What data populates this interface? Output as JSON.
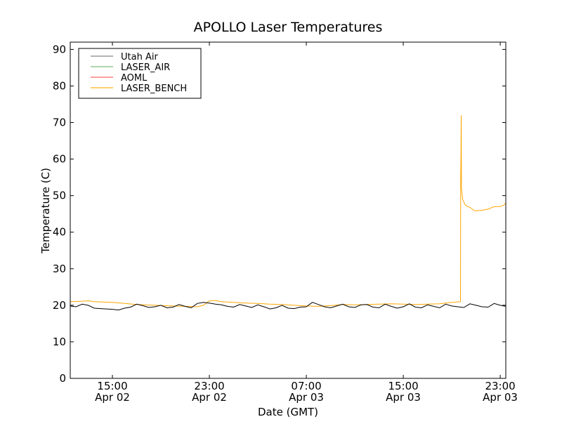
{
  "chart_data": {
    "type": "line",
    "title": "APOLLO Laser Temperatures",
    "xlabel": "Date (GMT)",
    "ylabel": "Temperature (C)",
    "x_units": "hours since 00:00 Apr 02 (GMT)",
    "xlim": [
      11.52,
      47.46
    ],
    "ylim": [
      0,
      92
    ],
    "yticks": [
      0,
      10,
      20,
      30,
      40,
      50,
      60,
      70,
      80,
      90
    ],
    "xticks": [
      {
        "value": 15,
        "time": "15:00",
        "date": "Apr 02"
      },
      {
        "value": 23,
        "time": "23:00",
        "date": "Apr 02"
      },
      {
        "value": 31,
        "time": "07:00",
        "date": "Apr 03"
      },
      {
        "value": 39,
        "time": "15:00",
        "date": "Apr 03"
      },
      {
        "value": 47,
        "time": "23:00",
        "date": "Apr 03"
      }
    ],
    "grid": false,
    "legend_position": "top-left",
    "series": [
      {
        "name": "Utah Air",
        "legend_color": "#999999",
        "line_color": "#000000",
        "points": [
          [
            11.5,
            19.8
          ],
          [
            12,
            19.6
          ],
          [
            12.5,
            20.3
          ],
          [
            13,
            20.0
          ],
          [
            13.5,
            19.2
          ],
          [
            14,
            19.1
          ],
          [
            14.5,
            19.0
          ],
          [
            15,
            18.9
          ],
          [
            15.5,
            18.7
          ],
          [
            16,
            19.2
          ],
          [
            16.5,
            19.5
          ],
          [
            17,
            20.3
          ],
          [
            17.5,
            19.9
          ],
          [
            18,
            19.4
          ],
          [
            18.5,
            19.6
          ],
          [
            19,
            20.0
          ],
          [
            19.5,
            19.3
          ],
          [
            20,
            19.5
          ],
          [
            20.5,
            20.2
          ],
          [
            21,
            19.7
          ],
          [
            21.5,
            19.3
          ],
          [
            22,
            20.5
          ],
          [
            22.5,
            20.8
          ],
          [
            23,
            20.6
          ],
          [
            23.5,
            20.3
          ],
          [
            24,
            20.1
          ],
          [
            24.5,
            19.7
          ],
          [
            25,
            19.5
          ],
          [
            25.5,
            20.2
          ],
          [
            26,
            19.8
          ],
          [
            26.5,
            19.4
          ],
          [
            27,
            20.1
          ],
          [
            27.5,
            19.6
          ],
          [
            28,
            19.0
          ],
          [
            28.5,
            19.3
          ],
          [
            29,
            20.0
          ],
          [
            29.5,
            19.2
          ],
          [
            30,
            19.1
          ],
          [
            30.5,
            19.5
          ],
          [
            31,
            19.6
          ],
          [
            31.5,
            20.8
          ],
          [
            32,
            20.2
          ],
          [
            32.5,
            19.6
          ],
          [
            33,
            19.3
          ],
          [
            33.5,
            19.8
          ],
          [
            34,
            20.3
          ],
          [
            34.5,
            19.6
          ],
          [
            35,
            19.4
          ],
          [
            35.5,
            20.1
          ],
          [
            36,
            20.2
          ],
          [
            36.5,
            19.5
          ],
          [
            37,
            19.3
          ],
          [
            37.5,
            20.3
          ],
          [
            38,
            19.7
          ],
          [
            38.5,
            19.2
          ],
          [
            39,
            19.6
          ],
          [
            39.5,
            20.4
          ],
          [
            40,
            19.5
          ],
          [
            40.5,
            19.3
          ],
          [
            41,
            20.1
          ],
          [
            41.5,
            19.7
          ],
          [
            42,
            19.3
          ],
          [
            42.5,
            20.3
          ],
          [
            43,
            19.8
          ],
          [
            43.5,
            19.6
          ],
          [
            44,
            19.4
          ],
          [
            44.5,
            20.4
          ],
          [
            45,
            20.0
          ],
          [
            45.5,
            19.6
          ],
          [
            46,
            19.5
          ],
          [
            46.5,
            20.5
          ],
          [
            47,
            20.0
          ],
          [
            47.46,
            19.7
          ]
        ]
      },
      {
        "name": "LASER_AIR",
        "legend_color": "#8fc98f",
        "line_color": "#8fc98f",
        "points": []
      },
      {
        "name": "AOML",
        "legend_color": "#ff7f7f",
        "line_color": "#ff7f7f",
        "points": []
      },
      {
        "name": "LASER_BENCH",
        "legend_color": "#ffbf40",
        "line_color": "#ffa500",
        "points": [
          [
            11.52,
            21.0
          ],
          [
            12.5,
            21.1
          ],
          [
            13,
            21.2
          ],
          [
            13.5,
            21.0
          ],
          [
            15,
            20.8
          ],
          [
            16,
            20.5
          ],
          [
            17,
            20.2
          ],
          [
            18.5,
            20.0
          ],
          [
            20,
            19.8
          ],
          [
            21,
            19.7
          ],
          [
            22,
            19.6
          ],
          [
            22.5,
            20.0
          ],
          [
            23,
            21.2
          ],
          [
            23.5,
            21.3
          ],
          [
            24,
            21.0
          ],
          [
            25,
            20.8
          ],
          [
            26,
            20.6
          ],
          [
            27,
            20.5
          ],
          [
            28,
            20.3
          ],
          [
            29,
            20.2
          ],
          [
            30,
            20.0
          ],
          [
            31,
            19.8
          ],
          [
            32,
            19.7
          ],
          [
            33,
            19.9
          ],
          [
            34,
            20.2
          ],
          [
            35,
            20.1
          ],
          [
            36,
            20.2
          ],
          [
            37,
            20.3
          ],
          [
            38,
            20.4
          ],
          [
            39,
            20.3
          ],
          [
            40,
            20.2
          ],
          [
            41,
            20.3
          ],
          [
            42,
            20.4
          ],
          [
            43,
            20.8
          ],
          [
            43.72,
            21.0
          ],
          [
            43.74,
            55
          ],
          [
            43.76,
            61
          ],
          [
            43.78,
            72
          ],
          [
            43.8,
            52
          ],
          [
            43.9,
            49
          ],
          [
            44.1,
            47.5
          ],
          [
            44.3,
            47.0
          ],
          [
            44.5,
            46.8
          ],
          [
            44.7,
            46.3
          ],
          [
            44.9,
            45.8
          ],
          [
            45.2,
            45.9
          ],
          [
            45.5,
            46.0
          ],
          [
            45.8,
            46.2
          ],
          [
            46.1,
            46.4
          ],
          [
            46.4,
            46.9
          ],
          [
            46.7,
            47.0
          ],
          [
            47,
            47.0
          ],
          [
            47.3,
            47.4
          ],
          [
            47.46,
            48.0
          ]
        ]
      }
    ]
  }
}
